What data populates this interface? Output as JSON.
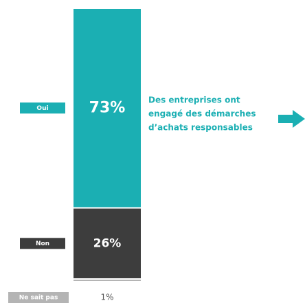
{
  "chart_data": {
    "type": "stacked_bar",
    "categories": [
      "Oui",
      "Non",
      "Ne sait pas"
    ],
    "values": [
      73,
      26,
      1
    ],
    "value_labels": [
      "73%",
      "26%",
      "1%"
    ],
    "colors": [
      "#1bafb3",
      "#3d3d3d",
      "#b4b4b4"
    ],
    "annotation": [
      "Des entreprises ont",
      "engagé des démarches",
      "d’achats responsables"
    ]
  }
}
